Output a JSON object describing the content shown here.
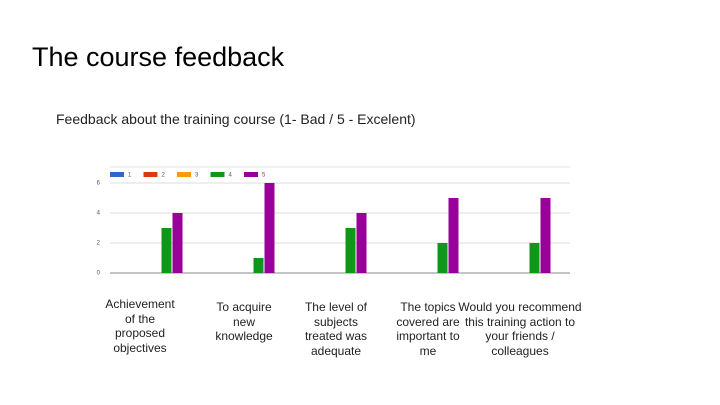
{
  "title": "The course feedback",
  "chart_data": {
    "type": "bar",
    "title": "Feedback about the training course (1- Bad / 5 - Excelent)",
    "categories": [
      "Achievement of the proposed objectives",
      "To acquire new knowledge",
      "The level of subjects treated was adequate",
      "The topics covered are important to me",
      "Would you recommend this training action to your friends / colleagues"
    ],
    "series": [
      {
        "name": "1",
        "color": "#3366cc",
        "values": [
          0,
          0,
          0,
          0,
          0
        ]
      },
      {
        "name": "2",
        "color": "#dc3912",
        "values": [
          0,
          0,
          0,
          0,
          0
        ]
      },
      {
        "name": "3",
        "color": "#ff9900",
        "values": [
          0,
          0,
          0,
          0,
          0
        ]
      },
      {
        "name": "4",
        "color": "#109618",
        "values": [
          3,
          1,
          3,
          2,
          2
        ]
      },
      {
        "name": "5",
        "color": "#990099",
        "values": [
          4,
          6,
          4,
          5,
          5
        ]
      }
    ],
    "ylim": [
      0,
      6
    ],
    "yticks": [
      0,
      2,
      4,
      6
    ],
    "grid": true,
    "legend": "top"
  }
}
